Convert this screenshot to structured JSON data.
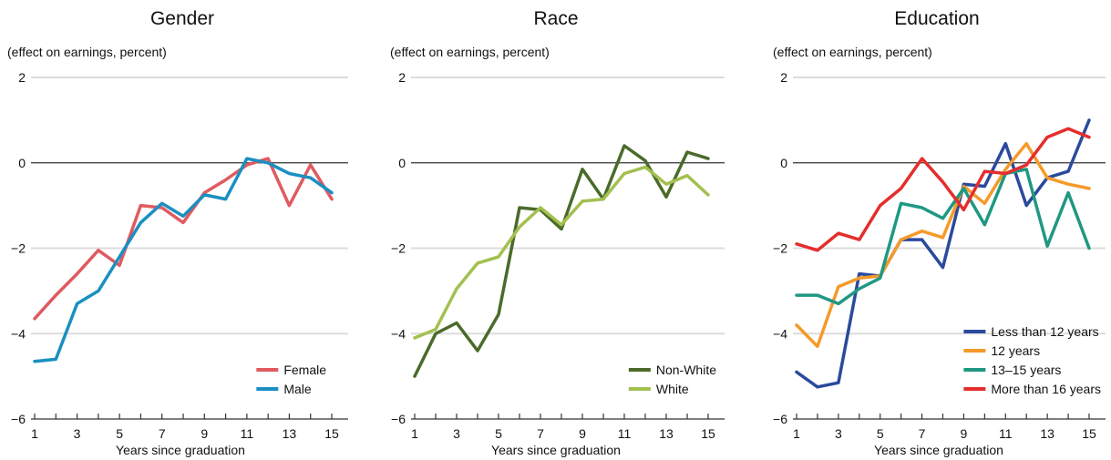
{
  "chart_data": [
    {
      "type": "line",
      "title": "Gender",
      "subtitle": "(effect on earnings, percent)",
      "xlabel": "Years since graduation",
      "ylabel": "",
      "ylim": [
        -6,
        2
      ],
      "yticks": [
        2,
        0,
        -2,
        -4,
        -6
      ],
      "xlim": [
        1,
        15
      ],
      "xtick_labels": [
        1,
        3,
        5,
        7,
        9,
        11,
        13,
        15
      ],
      "grid": true,
      "legend_position": "bottom-right",
      "x": [
        1,
        2,
        3,
        4,
        5,
        6,
        7,
        8,
        9,
        10,
        11,
        12,
        13,
        14,
        15
      ],
      "series": [
        {
          "name": "Female",
          "color": "#e05a5f",
          "values": [
            -3.65,
            -3.1,
            -2.6,
            -2.05,
            -2.4,
            -1.0,
            -1.05,
            -1.4,
            -0.7,
            -0.4,
            -0.05,
            0.1,
            -1.0,
            -0.05,
            -0.85
          ]
        },
        {
          "name": "Male",
          "color": "#1b8fc1",
          "values": [
            -4.65,
            -4.6,
            -3.3,
            -3.0,
            -2.2,
            -1.4,
            -0.95,
            -1.25,
            -0.75,
            -0.85,
            0.1,
            0.0,
            -0.25,
            -0.35,
            -0.7
          ]
        }
      ]
    },
    {
      "type": "line",
      "title": "Race",
      "subtitle": "(effect on earnings, percent)",
      "xlabel": "Years since graduation",
      "ylabel": "",
      "ylim": [
        -6,
        2
      ],
      "yticks": [
        2,
        0,
        -2,
        -4,
        -6
      ],
      "xlim": [
        1,
        15
      ],
      "xtick_labels": [
        1,
        3,
        5,
        7,
        9,
        11,
        13,
        15
      ],
      "grid": true,
      "legend_position": "bottom-right",
      "x": [
        1,
        2,
        3,
        4,
        5,
        6,
        7,
        8,
        9,
        10,
        11,
        12,
        13,
        14,
        15
      ],
      "series": [
        {
          "name": "Non-White",
          "color": "#4a6b2a",
          "values": [
            -5.0,
            -4.0,
            -3.75,
            -4.4,
            -3.55,
            -1.05,
            -1.1,
            -1.55,
            -0.15,
            -0.85,
            0.4,
            0.05,
            -0.8,
            0.25,
            0.1
          ]
        },
        {
          "name": "White",
          "color": "#a3c050",
          "values": [
            -4.1,
            -3.9,
            -2.95,
            -2.35,
            -2.2,
            -1.5,
            -1.05,
            -1.45,
            -0.9,
            -0.85,
            -0.25,
            -0.1,
            -0.5,
            -0.3,
            -0.75
          ]
        }
      ]
    },
    {
      "type": "line",
      "title": "Education",
      "subtitle": "(effect on earnings, percent)",
      "xlabel": "Years since graduation",
      "ylabel": "",
      "ylim": [
        -6,
        2
      ],
      "yticks": [
        2,
        0,
        -2,
        -4,
        -6
      ],
      "xlim": [
        1,
        15
      ],
      "xtick_labels": [
        1,
        3,
        5,
        7,
        9,
        11,
        13,
        15
      ],
      "grid": true,
      "legend_position": "bottom-right",
      "x": [
        1,
        2,
        3,
        4,
        5,
        6,
        7,
        8,
        9,
        10,
        11,
        12,
        13,
        14,
        15
      ],
      "series": [
        {
          "name": "Less than 12 years",
          "color": "#2a4a9c",
          "values": [
            -4.9,
            -5.25,
            -5.15,
            -2.6,
            -2.65,
            -1.8,
            -1.8,
            -2.45,
            -0.5,
            -0.55,
            0.45,
            -1.0,
            -0.35,
            -0.2,
            1.0
          ]
        },
        {
          "name": "12 years",
          "color": "#f59a2a",
          "values": [
            -3.8,
            -4.3,
            -2.9,
            -2.7,
            -2.65,
            -1.8,
            -1.6,
            -1.75,
            -0.55,
            -0.95,
            -0.15,
            0.45,
            -0.35,
            -0.5,
            -0.6
          ]
        },
        {
          "name": "13–15 years",
          "color": "#1f9882",
          "values": [
            -3.1,
            -3.1,
            -3.3,
            -2.95,
            -2.7,
            -0.95,
            -1.05,
            -1.3,
            -0.6,
            -1.45,
            -0.25,
            -0.15,
            -1.95,
            -0.7,
            -2.0
          ]
        },
        {
          "name": "More than 16 years",
          "color": "#e52d2d",
          "values": [
            -1.9,
            -2.05,
            -1.65,
            -1.8,
            -1.0,
            -0.6,
            0.1,
            -0.45,
            -1.1,
            -0.2,
            -0.25,
            -0.05,
            0.6,
            0.8,
            0.6
          ]
        }
      ]
    }
  ]
}
